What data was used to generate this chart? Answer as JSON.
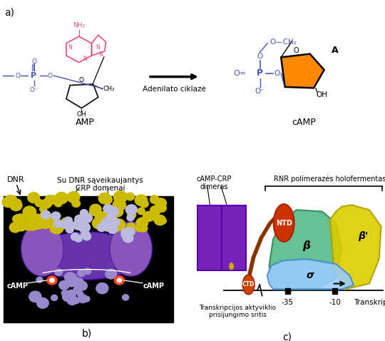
{
  "panel_a_label": "a)",
  "panel_b_label": "b)",
  "panel_c_label": "c)",
  "amp_label": "AMP",
  "camp_label": "cAMP",
  "enzyme_label": "Adenilato ciklazė",
  "dnr_label": "DNR",
  "su_dnr_label": "Su DNR sąveikaujantys\nCRP domenai",
  "camp_left": "cAMP",
  "camp_right": "cAMP",
  "camp_crp": "cAMP-CRP\ndimeras",
  "rnr_pol": "RNR polimerazės holofermentas",
  "transkripcija": "Transkripcija",
  "aktyviklio": "Transkripcijos aktyviklio\nprisijungimo sritis",
  "minus35": "-35",
  "minus10": "-10",
  "ntd_label": "NTD",
  "ctd_label": "CTD",
  "beta_label": "β",
  "beta_prime_label": "β'",
  "sigma_label": "σ",
  "bg_color": "#ffffff",
  "adenine_color": "#e05080",
  "phosphate_color": "#4455bb",
  "ribose_color": "#ff8800",
  "purple_color": "#7733bb",
  "orange_red_color": "#cc3300"
}
